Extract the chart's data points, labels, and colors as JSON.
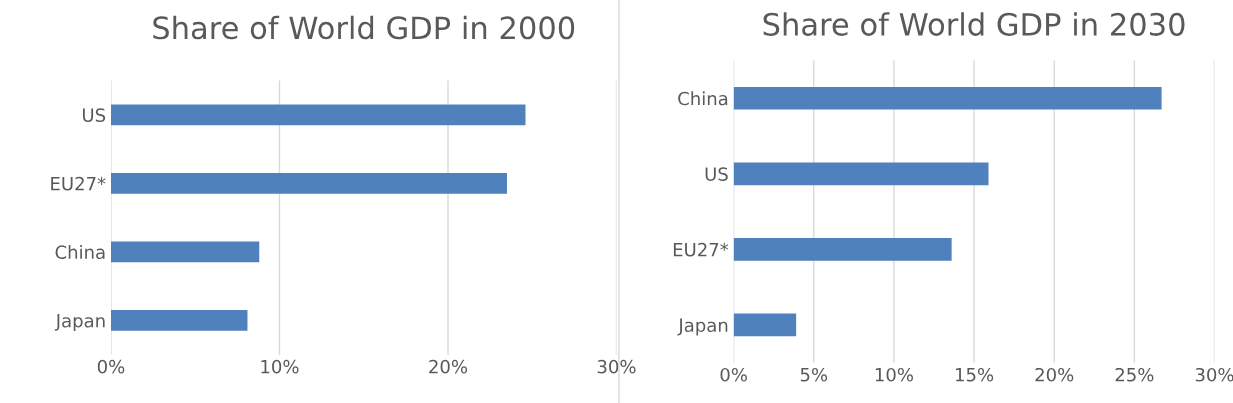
{
  "chart_data": [
    {
      "type": "bar",
      "orientation": "horizontal",
      "title": "Share of World GDP in 2000",
      "categories": [
        "US",
        "EU27*",
        "China",
        "Japan"
      ],
      "values": [
        24.6,
        23.5,
        8.8,
        8.1
      ],
      "color": "#4f81bd",
      "xlim": [
        0,
        30
      ],
      "xticks": [
        {
          "value": 0,
          "label": "0%"
        },
        {
          "value": 10,
          "label": "10%"
        },
        {
          "value": 20,
          "label": "20%"
        },
        {
          "value": 30,
          "label": "30%"
        }
      ],
      "grid": "x",
      "legend": false
    },
    {
      "type": "bar",
      "orientation": "horizontal",
      "title": "Share of World GDP in 2030",
      "categories": [
        "China",
        "US",
        "EU27*",
        "Japan"
      ],
      "values": [
        26.7,
        15.9,
        13.6,
        3.9
      ],
      "color": "#4f81bd",
      "xlim": [
        0,
        30
      ],
      "xticks": [
        {
          "value": 0,
          "label": "0%"
        },
        {
          "value": 5,
          "label": "5%"
        },
        {
          "value": 10,
          "label": "10%"
        },
        {
          "value": 15,
          "label": "15%"
        },
        {
          "value": 20,
          "label": "20%"
        },
        {
          "value": 25,
          "label": "25%"
        },
        {
          "value": 30,
          "label": "30%"
        }
      ],
      "grid": "x",
      "legend": false
    }
  ]
}
